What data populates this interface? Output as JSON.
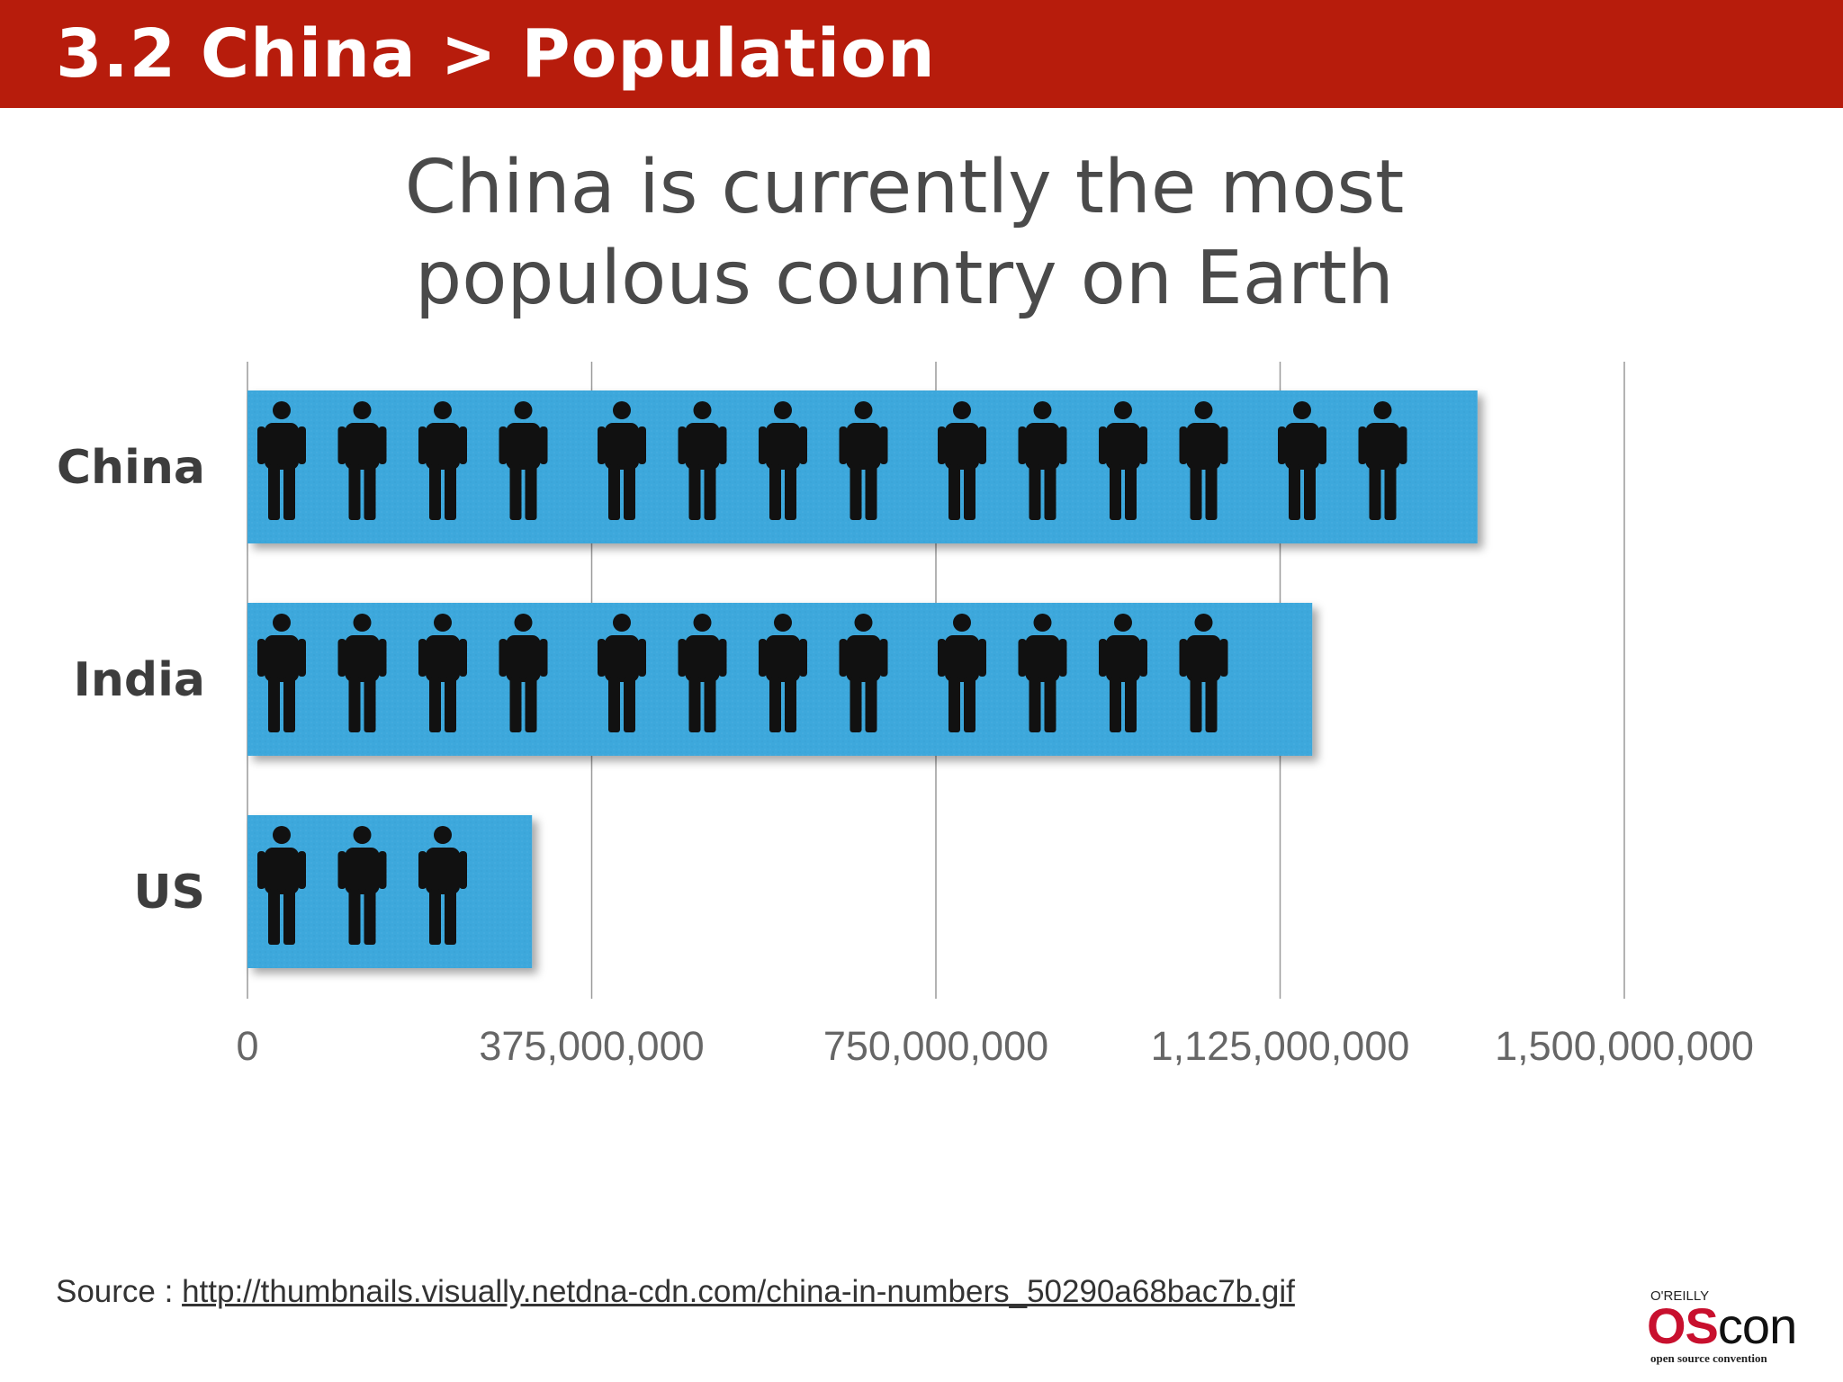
{
  "header": {
    "title": "3.2 China > Population"
  },
  "headline": {
    "line1": "China is currently the most",
    "line2": "populous country on Earth"
  },
  "chart_data": {
    "type": "bar",
    "orientation": "horizontal",
    "categories": [
      "China",
      "India",
      "US"
    ],
    "values": [
      1340000000,
      1160000000,
      310000000
    ],
    "icon_counts": [
      14,
      12,
      3
    ],
    "xlim": [
      0,
      1500000000
    ],
    "ticks": [
      0,
      375000000,
      750000000,
      1125000000,
      1500000000
    ],
    "tick_labels": [
      "0",
      "375,000,000",
      "750,000,000",
      "1,125,000,000",
      "1,500,000,000"
    ],
    "grid": true,
    "bar_color": "#3ea8dc",
    "icon": "person-icon",
    "icon_color": "#111111",
    "title": "",
    "xlabel": "",
    "ylabel": ""
  },
  "source": {
    "prefix": "Source : ",
    "url": "http://thumbnails.visually.netdna-cdn.com/china-in-numbers_50290a68bac7b.gif"
  },
  "logo": {
    "publisher": "O'REILLY",
    "word_part1": "OS",
    "word_part2": "con",
    "tagline": "open source convention"
  },
  "colors": {
    "header": "#b71c0c",
    "accent": "#c8102e"
  }
}
